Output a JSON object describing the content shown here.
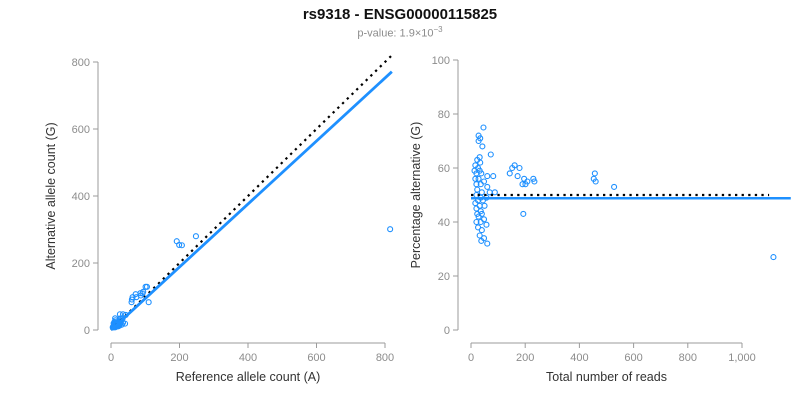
{
  "header": {
    "title": "rs9318 - ENSG00000115825",
    "subtitle_text": "p-value: 1.9×10",
    "subtitle_exponent": "−3"
  },
  "colors": {
    "accent_blue": "#1E90FF",
    "line_black": "#000000",
    "axis_gray": "#9b9b9b",
    "tick_label_gray": "#8c8c8c",
    "axis_title_color": "#333333"
  },
  "chart_data": [
    {
      "type": "scatter",
      "panel": "left",
      "marker": "open-circle",
      "grid": false,
      "xlabel": "Reference allele count (A)",
      "ylabel": "Alternative allele count (G)",
      "xlim": [
        0,
        830
      ],
      "ylim": [
        0,
        830
      ],
      "xticks": [
        0,
        200,
        400,
        600,
        800
      ],
      "xtick_labels": [
        "0",
        "200",
        "400",
        "600",
        "800"
      ],
      "yticks": [
        0,
        200,
        400,
        600,
        800
      ],
      "ytick_labels": [
        "0",
        "200",
        "400",
        "600",
        "800"
      ],
      "points": [
        [
          12,
          35
        ],
        [
          8,
          20
        ],
        [
          10,
          24
        ],
        [
          8,
          20
        ],
        [
          13,
          29
        ],
        [
          26,
          47
        ],
        [
          12,
          20
        ],
        [
          9,
          14
        ],
        [
          13,
          21
        ],
        [
          6,
          10
        ],
        [
          10,
          16
        ],
        [
          5,
          8
        ],
        [
          13,
          19
        ],
        [
          8,
          12
        ],
        [
          16,
          22
        ],
        [
          26,
          34
        ],
        [
          35,
          47
        ],
        [
          61,
          91
        ],
        [
          63,
          98
        ],
        [
          60,
          83
        ],
        [
          74,
          98
        ],
        [
          86,
          110
        ],
        [
          94,
          114
        ],
        [
          101,
          129
        ],
        [
          7,
          9
        ],
        [
          12,
          16
        ],
        [
          22,
          26
        ],
        [
          9,
          11
        ],
        [
          17,
          19
        ],
        [
          28,
          32
        ],
        [
          11,
          12
        ],
        [
          20,
          20
        ],
        [
          34,
          35
        ],
        [
          43,
          45
        ],
        [
          10,
          10
        ],
        [
          18,
          18
        ],
        [
          29,
          28
        ],
        [
          14,
          12
        ],
        [
          23,
          21
        ],
        [
          8,
          8
        ],
        [
          17,
          15
        ],
        [
          27,
          23
        ],
        [
          11,
          9
        ],
        [
          20,
          16
        ],
        [
          13,
          10
        ],
        [
          23,
          17
        ],
        [
          110,
          83
        ],
        [
          16,
          12
        ],
        [
          28,
          20
        ],
        [
          12,
          8
        ],
        [
          22,
          14
        ],
        [
          35,
          22
        ],
        [
          16,
          10
        ],
        [
          25,
          15
        ],
        [
          21,
          11
        ],
        [
          32,
          16
        ],
        [
          41,
          19
        ],
        [
          25,
          13
        ],
        [
          72,
          107
        ],
        [
          87,
          103
        ],
        [
          92,
          109
        ],
        [
          105,
          129
        ],
        [
          192,
          265
        ],
        [
          199,
          254
        ],
        [
          207,
          253
        ],
        [
          248,
          280
        ],
        [
          815,
          301
        ]
      ],
      "lines": [
        {
          "name": "identity-line",
          "style": "dotted",
          "color": "#000000",
          "from": [
            0,
            0
          ],
          "to": [
            825,
            825
          ]
        },
        {
          "name": "regression-line",
          "style": "solid",
          "color": "#1E90FF",
          "from": [
            0,
            0
          ],
          "to": [
            820,
            771
          ]
        }
      ]
    },
    {
      "type": "scatter",
      "panel": "right",
      "marker": "open-circle",
      "grid": false,
      "xlabel": "Total number of reads",
      "ylabel": "Percentage alternative (G)",
      "xlim": [
        0,
        1180
      ],
      "ylim": [
        0,
        100
      ],
      "xticks": [
        0,
        200,
        400,
        600,
        800,
        1000
      ],
      "xtick_labels": [
        "0",
        "200",
        "400",
        "600",
        "800",
        "1,000"
      ],
      "yticks": [
        0,
        20,
        40,
        60,
        80,
        100
      ],
      "ytick_labels": [
        "0",
        "20",
        "40",
        "60",
        "80",
        "100"
      ],
      "points": [
        [
          46,
          75
        ],
        [
          28,
          72
        ],
        [
          34,
          71
        ],
        [
          28,
          70
        ],
        [
          42,
          68
        ],
        [
          73,
          65
        ],
        [
          32,
          64
        ],
        [
          23,
          63
        ],
        [
          34,
          62
        ],
        [
          16,
          61
        ],
        [
          26,
          60
        ],
        [
          13,
          59
        ],
        [
          32,
          59
        ],
        [
          20,
          58
        ],
        [
          38,
          58
        ],
        [
          60,
          57
        ],
        [
          82,
          57
        ],
        [
          152,
          60
        ],
        [
          161,
          61
        ],
        [
          143,
          58
        ],
        [
          172,
          57
        ],
        [
          196,
          56
        ],
        [
          208,
          55
        ],
        [
          230,
          56
        ],
        [
          16,
          56
        ],
        [
          28,
          56
        ],
        [
          48,
          55
        ],
        [
          20,
          54
        ],
        [
          36,
          54
        ],
        [
          60,
          53
        ],
        [
          23,
          52
        ],
        [
          40,
          51
        ],
        [
          69,
          51
        ],
        [
          88,
          51
        ],
        [
          20,
          50
        ],
        [
          36,
          49
        ],
        [
          57,
          49
        ],
        [
          26,
          48
        ],
        [
          44,
          48
        ],
        [
          16,
          47
        ],
        [
          32,
          46
        ],
        [
          50,
          46
        ],
        [
          20,
          45
        ],
        [
          36,
          44
        ],
        [
          23,
          43
        ],
        [
          40,
          43
        ],
        [
          193,
          43
        ],
        [
          28,
          42
        ],
        [
          48,
          41
        ],
        [
          20,
          40
        ],
        [
          36,
          40
        ],
        [
          57,
          39
        ],
        [
          26,
          38
        ],
        [
          40,
          37
        ],
        [
          32,
          35
        ],
        [
          48,
          34
        ],
        [
          60,
          32
        ],
        [
          38,
          33
        ],
        [
          179,
          60
        ],
        [
          190,
          54
        ],
        [
          201,
          54
        ],
        [
          234,
          55
        ],
        [
          457,
          58
        ],
        [
          453,
          56
        ],
        [
          460,
          55
        ],
        [
          528,
          53
        ],
        [
          1116,
          27
        ]
      ],
      "lines": [
        {
          "name": "expected-50pct-line",
          "style": "dotted",
          "color": "#000000",
          "from": [
            0,
            50
          ],
          "to": [
            1100,
            50
          ]
        },
        {
          "name": "fit-line",
          "style": "solid",
          "color": "#1E90FF",
          "from": [
            0,
            48.8
          ],
          "to": [
            1180,
            48.8
          ]
        }
      ]
    }
  ]
}
